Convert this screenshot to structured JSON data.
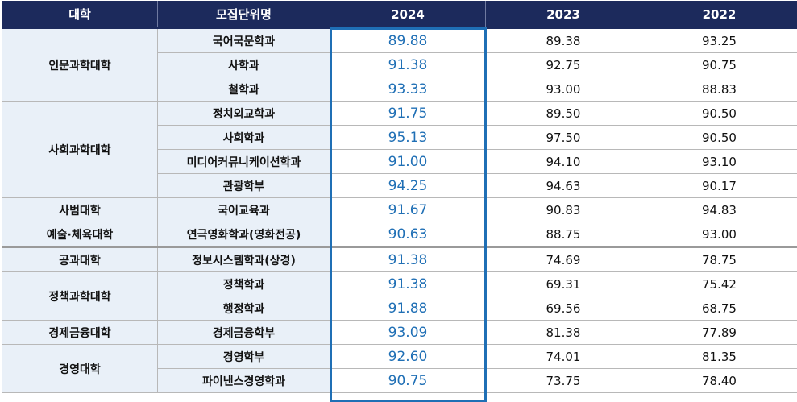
{
  "header": {
    "college": "대학",
    "dept": "모집단위명",
    "y2024": "2024",
    "y2023": "2023",
    "y2022": "2022"
  },
  "highlight_color": "#1f6fb5",
  "header_color": "#1c2a5c",
  "rows": [
    {
      "college": "인문과학대학",
      "dept": "국어국문학과",
      "v2024": "89.88",
      "v2023": "89.38",
      "v2022": "93.25"
    },
    {
      "college": "",
      "dept": "사학과",
      "v2024": "91.38",
      "v2023": "92.75",
      "v2022": "90.75"
    },
    {
      "college": "",
      "dept": "철학과",
      "v2024": "93.33",
      "v2023": "93.00",
      "v2022": "88.83"
    },
    {
      "college": "사회과학대학",
      "dept": "정치외교학과",
      "v2024": "91.75",
      "v2023": "89.50",
      "v2022": "90.50"
    },
    {
      "college": "",
      "dept": "사회학과",
      "v2024": "95.13",
      "v2023": "97.50",
      "v2022": "90.50"
    },
    {
      "college": "",
      "dept": "미디어커뮤니케이션학과",
      "v2024": "91.00",
      "v2023": "94.10",
      "v2022": "93.10"
    },
    {
      "college": "",
      "dept": "관광학부",
      "v2024": "94.25",
      "v2023": "94.63",
      "v2022": "90.17"
    },
    {
      "college": "사범대학",
      "dept": "국어교육과",
      "v2024": "91.67",
      "v2023": "90.83",
      "v2022": "94.83"
    },
    {
      "college": "예술·체육대학",
      "dept": "연극영화학과(영화전공)",
      "v2024": "90.63",
      "v2023": "88.75",
      "v2022": "93.00"
    },
    {
      "college": "공과대학",
      "dept": "정보시스템학과(상경)",
      "v2024": "91.38",
      "v2023": "74.69",
      "v2022": "78.75"
    },
    {
      "college": "정책과학대학",
      "dept": "정책학과",
      "v2024": "91.38",
      "v2023": "69.31",
      "v2022": "75.42"
    },
    {
      "college": "",
      "dept": "행정학과",
      "v2024": "91.88",
      "v2023": "69.56",
      "v2022": "68.75"
    },
    {
      "college": "경제금융대학",
      "dept": "경제금융학부",
      "v2024": "93.09",
      "v2023": "81.38",
      "v2022": "77.89"
    },
    {
      "college": "경영대학",
      "dept": "경영학부",
      "v2024": "92.60",
      "v2023": "74.01",
      "v2022": "81.35"
    },
    {
      "college": "",
      "dept": "파이낸스경영학과",
      "v2024": "90.75",
      "v2023": "73.75",
      "v2022": "78.40"
    }
  ]
}
